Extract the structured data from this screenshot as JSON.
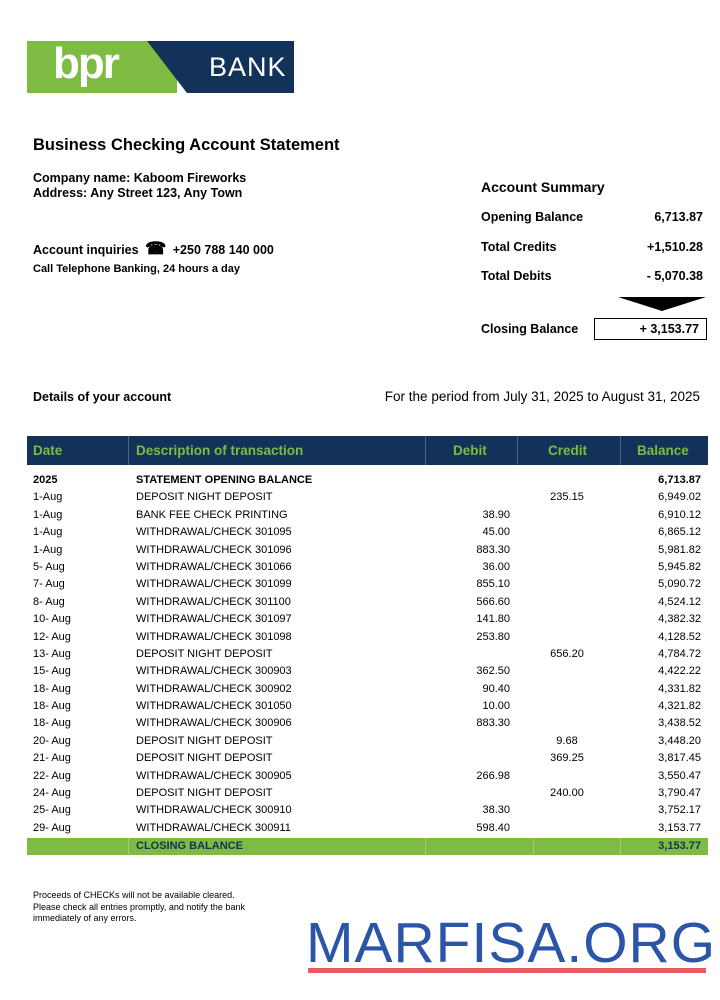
{
  "logo": {
    "brand": "bpr",
    "bank": "BANK",
    "colors": {
      "green": "#7dbb42",
      "navy": "#13325a"
    }
  },
  "title": "Business Checking Account Statement",
  "company": "Company name: Kaboom Fireworks",
  "address": "Address: Any Street 123, Any Town",
  "inquiries": {
    "label": "Account inquiries",
    "icon": "telephone-icon",
    "phone": "+250 788 140 000",
    "note": "Call Telephone Banking, 24 hours a day"
  },
  "summary": {
    "title": "Account Summary",
    "opening_label": "Opening Balance",
    "opening": "6,713.87",
    "credits_label": "Total Credits",
    "credits": "+1,510.28",
    "debits_label": "Total Debits",
    "debits": "- 5,070.38",
    "closing_label": "Closing Balance",
    "closing": "+ 3,153.77"
  },
  "details_label": "Details of your account",
  "period": "For the period from July 31, 2025 to August 31, 2025",
  "table": {
    "headers": [
      "Date",
      "Description of transaction",
      "Debit",
      "Credit",
      "Balance"
    ],
    "rows": [
      {
        "date": "2025",
        "desc": "STATEMENT OPENING BALANCE",
        "debit": "",
        "credit": "",
        "balance": "6,713.87"
      },
      {
        "date": "1-Aug",
        "desc": "DEPOSIT NIGHT DEPOSIT",
        "debit": "",
        "credit": "235.15",
        "balance": "6,949.02"
      },
      {
        "date": "1-Aug",
        "desc": "BANK FEE CHECK PRINTING",
        "debit": "38.90",
        "credit": "",
        "balance": "6,910.12"
      },
      {
        "date": "1-Aug",
        "desc": "WITHDRAWAL/CHECK 301095",
        "debit": "45.00",
        "credit": "",
        "balance": "6,865.12"
      },
      {
        "date": "1-Aug",
        "desc": "WITHDRAWAL/CHECK 301096",
        "debit": "883.30",
        "credit": "",
        "balance": "5,981.82"
      },
      {
        "date": "5- Aug",
        "desc": "WITHDRAWAL/CHECK 301066",
        "debit": "36.00",
        "credit": "",
        "balance": "5,945.82"
      },
      {
        "date": "7- Aug",
        "desc": "WITHDRAWAL/CHECK 301099",
        "debit": "855.10",
        "credit": "",
        "balance": "5,090.72"
      },
      {
        "date": "8- Aug",
        "desc": "WITHDRAWAL/CHECK 301100",
        "debit": "566.60",
        "credit": "",
        "balance": "4,524.12"
      },
      {
        "date": "10- Aug",
        "desc": "WITHDRAWAL/CHECK 301097",
        "debit": "141.80",
        "credit": "",
        "balance": "4,382.32"
      },
      {
        "date": "12- Aug",
        "desc": "WITHDRAWAL/CHECK 301098",
        "debit": "253.80",
        "credit": "",
        "balance": "4,128.52"
      },
      {
        "date": "13- Aug",
        "desc": "DEPOSIT NIGHT DEPOSIT",
        "debit": "",
        "credit": "656.20",
        "balance": "4,784.72"
      },
      {
        "date": "15- Aug",
        "desc": "WITHDRAWAL/CHECK 300903",
        "debit": "362.50",
        "credit": "",
        "balance": "4,422.22"
      },
      {
        "date": "18- Aug",
        "desc": "WITHDRAWAL/CHECK 300902",
        "debit": "90.40",
        "credit": "",
        "balance": "4,331.82"
      },
      {
        "date": "18- Aug",
        "desc": "WITHDRAWAL/CHECK 301050",
        "debit": "10.00",
        "credit": "",
        "balance": "4,321.82"
      },
      {
        "date": "18- Aug",
        "desc": "WITHDRAWAL/CHECK 300906",
        "debit": "883.30",
        "credit": "",
        "balance": "3,438.52"
      },
      {
        "date": "20- Aug",
        "desc": "DEPOSIT NIGHT DEPOSIT",
        "debit": "",
        "credit": "9.68",
        "balance": "3,448.20"
      },
      {
        "date": "21- Aug",
        "desc": "DEPOSIT NIGHT DEPOSIT",
        "debit": "",
        "credit": "369.25",
        "balance": "3,817.45"
      },
      {
        "date": "22- Aug",
        "desc": "WITHDRAWAL/CHECK 300905",
        "debit": "266.98",
        "credit": "",
        "balance": "3,550.47"
      },
      {
        "date": "24- Aug",
        "desc": "DEPOSIT NIGHT DEPOSIT",
        "debit": "",
        "credit": "240.00",
        "balance": "3,790.47"
      },
      {
        "date": "25- Aug",
        "desc": "WITHDRAWAL/CHECK 300910",
        "debit": "38.30",
        "credit": "",
        "balance": "3,752.17"
      },
      {
        "date": "29- Aug",
        "desc": "WITHDRAWAL/CHECK 300911",
        "debit": "598.40",
        "credit": "",
        "balance": "3,153.77"
      }
    ],
    "closing_label": "CLOSING BALANCE",
    "closing": "3,153.77"
  },
  "footer": "Proceeds of CHECKs will not be available cleared. Please check all entries promptly, and notify the bank immediately of any errors.",
  "watermark": "MARFISA.ORG"
}
